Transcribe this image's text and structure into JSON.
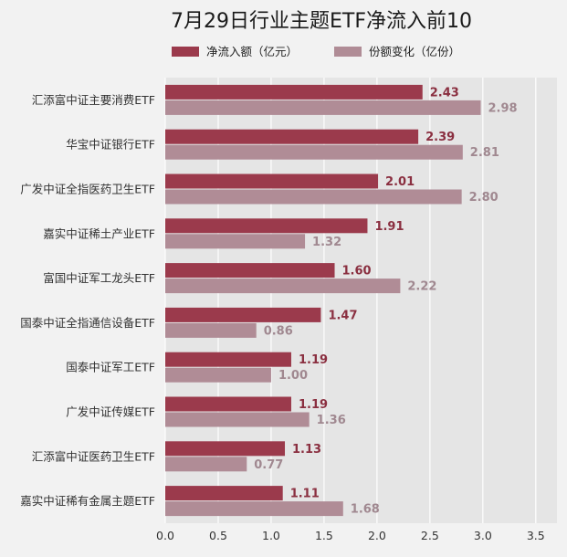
{
  "chart_data": {
    "type": "bar",
    "orientation": "horizontal",
    "title": "7月29日行业主题ETF净流入前10",
    "categories": [
      "汇添富中证主要消费ETF",
      "华宝中证银行ETF",
      "广发中证全指医药卫生ETF",
      "嘉实中证稀土产业ETF",
      "富国中证军工龙头ETF",
      "国泰中证全指通信设备ETF",
      "国泰中证军工ETF",
      "广发中证传媒ETF",
      "汇添富中证医药卫生ETF",
      "嘉实中证稀有金属主题ETF"
    ],
    "series": [
      {
        "name": "净流入额（亿元）",
        "color": "#9b3a4c",
        "values": [
          2.43,
          2.39,
          2.01,
          1.91,
          1.6,
          1.47,
          1.19,
          1.19,
          1.13,
          1.11
        ],
        "labels": [
          "2.43",
          "2.39",
          "2.01",
          "1.91",
          "1.60",
          "1.47",
          "1.19",
          "1.19",
          "1.13",
          "1.11"
        ]
      },
      {
        "name": "份额变化（亿份）",
        "color": "#b08c96",
        "values": [
          2.98,
          2.81,
          2.8,
          1.32,
          2.22,
          0.86,
          1.0,
          1.36,
          0.77,
          1.68
        ],
        "labels": [
          "2.98",
          "2.81",
          "2.80",
          "1.32",
          "2.22",
          "0.86",
          "1.00",
          "1.36",
          "0.77",
          "1.68"
        ]
      }
    ],
    "xlim": [
      0,
      3.7
    ],
    "xticks": [
      0,
      0.5,
      1.0,
      1.5,
      2.0,
      2.5,
      3.0,
      3.5
    ],
    "xtick_labels": [
      "0.0",
      "0.5",
      "1.0",
      "1.5",
      "2.0",
      "2.5",
      "3.0",
      "3.5"
    ],
    "grid": "vertical",
    "legend_position": "top"
  }
}
